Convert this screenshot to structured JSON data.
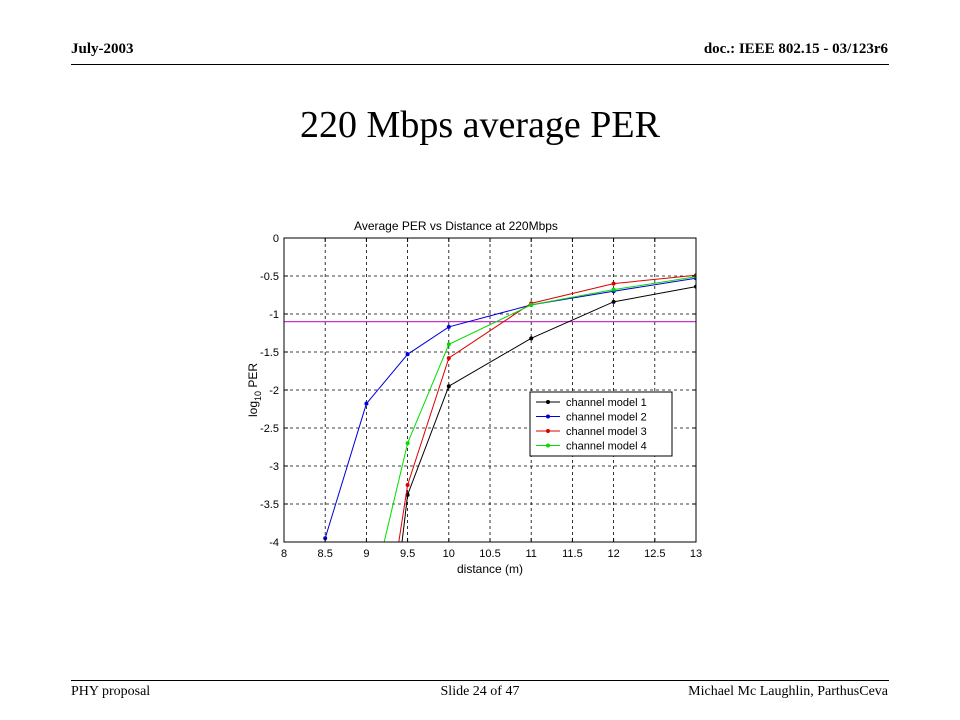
{
  "header": {
    "date": "July-2003",
    "doc": "doc.: IEEE 802.15 - 03/123r6"
  },
  "slide_title": "220 Mbps average PER",
  "footer": {
    "left": "PHY proposal",
    "center": "Slide 24 of 47",
    "right": "Michael Mc Laughlin, ParthusCeva"
  },
  "chart_data": {
    "type": "line",
    "title": "Average PER vs Distance at 220Mbps",
    "xlabel": "distance (m)",
    "ylabel": "log10 PER",
    "ylabel_base": "log",
    "ylabel_sub": "10",
    "ylabel_rest": " PER",
    "xlim": [
      8,
      13
    ],
    "ylim": [
      -4,
      0
    ],
    "xticks": [
      8,
      8.5,
      9,
      9.5,
      10,
      10.5,
      11,
      11.5,
      12,
      12.5,
      13
    ],
    "yticks": [
      0,
      -0.5,
      -1,
      -1.5,
      -2,
      -2.5,
      -3,
      -3.5,
      -4
    ],
    "grid": true,
    "legend_position": "center-right",
    "reference_line": {
      "y": -1.1,
      "color": "#cc33cc"
    },
    "series": [
      {
        "name": "channel model 1",
        "color": "#000000",
        "x": [
          9.4,
          9.5,
          10,
          11,
          12,
          13
        ],
        "y": [
          -4.3,
          -3.38,
          -1.95,
          -1.32,
          -0.84,
          -0.64
        ]
      },
      {
        "name": "channel model 2",
        "color": "#0000dd",
        "x": [
          8.5,
          9,
          9.5,
          10,
          11,
          12,
          13
        ],
        "y": [
          -3.95,
          -2.18,
          -1.53,
          -1.17,
          -0.88,
          -0.7,
          -0.53
        ]
      },
      {
        "name": "channel model 3",
        "color": "#dd0000",
        "x": [
          9.35,
          9.5,
          10,
          11,
          12,
          13
        ],
        "y": [
          -4.3,
          -3.25,
          -1.58,
          -0.86,
          -0.6,
          -0.49
        ]
      },
      {
        "name": "channel model 4",
        "color": "#00dd00",
        "x": [
          9.15,
          9.5,
          10,
          11,
          12,
          13
        ],
        "y": [
          -4.3,
          -2.7,
          -1.4,
          -0.88,
          -0.68,
          -0.51
        ]
      }
    ]
  }
}
